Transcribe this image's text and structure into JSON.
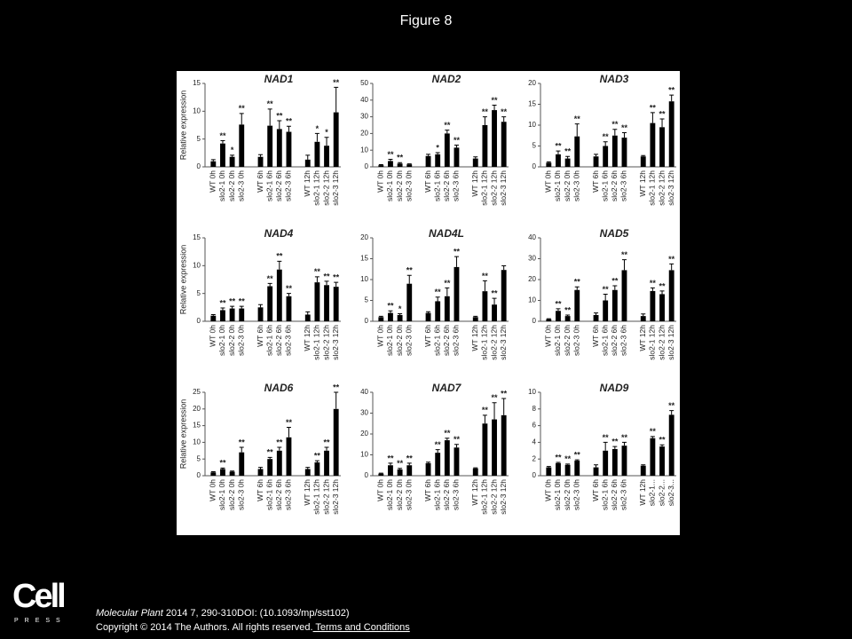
{
  "figure_title": "Figure 8",
  "citation": {
    "journal": "Molecular Plant",
    "rest": " 2014 7, 290-310DOI: (10.1093/mp/sst102)"
  },
  "copyright": "Copyright © 2014 The Authors. All rights reserved.",
  "link": " Terms and Conditions",
  "logo": {
    "name": "Cell",
    "press": "PRESS"
  },
  "chart_data": [
    {
      "type": "bar",
      "title": "NAD1",
      "ylabel": "Relative expression",
      "color": "#000000",
      "categories": [
        "WT 0h",
        "slo2-1 0h",
        "slo2-2 0h",
        "slo2-3 0h",
        "WT 6h",
        "slo2-1 6h",
        "slo2-2 6h",
        "slo2-3 6h",
        "WT 12h",
        "slo2-1 12h",
        "slo2-2 12h",
        "slo2-3 12h"
      ],
      "values": [
        1,
        4.2,
        1.8,
        7.6,
        1.8,
        7.4,
        6.8,
        6.3,
        1.3,
        4.5,
        3.8,
        9.8
      ],
      "errors": [
        0.3,
        0.5,
        0.3,
        2,
        0.4,
        3,
        1.5,
        1,
        0.8,
        1.5,
        1.5,
        4.5
      ],
      "annotations": [
        null,
        "**",
        "*",
        "**",
        null,
        "**",
        "**",
        "**",
        null,
        "*",
        "*",
        "**"
      ],
      "ylim": [
        0,
        15
      ],
      "yticks": [
        0,
        5,
        10,
        15
      ]
    },
    {
      "type": "bar",
      "title": "NAD2",
      "color": "#000000",
      "categories": [
        "WT 0h",
        "slo2-1 0h",
        "slo2-2 0h",
        "slo2-3 0h",
        "WT 6h",
        "slo2-1 6h",
        "slo2-2 6h",
        "slo2-3 6h",
        "WT 12h",
        "slo2-1 12h",
        "slo2-2 12h",
        "slo2-3 12h"
      ],
      "values": [
        1,
        3.5,
        2,
        1.5,
        6.5,
        7.5,
        20,
        11.5,
        5,
        25,
        34,
        27
      ],
      "errors": [
        0.3,
        1,
        0.5,
        0.3,
        1,
        1,
        2,
        1.5,
        1,
        5,
        3,
        3
      ],
      "annotations": [
        null,
        "**",
        "**",
        null,
        null,
        "*",
        "**",
        "**",
        null,
        "**",
        "**",
        "**"
      ],
      "ylim": [
        0,
        50
      ],
      "yticks": [
        0,
        10,
        20,
        30,
        40,
        50
      ]
    },
    {
      "type": "bar",
      "title": "NAD3",
      "color": "#000000",
      "categories": [
        "WT 0h",
        "slo2-1 0h",
        "slo2-2 0h",
        "slo2-3 0h",
        "WT 6h",
        "slo2-1 6h",
        "slo2-2 6h",
        "slo2-3 6h",
        "WT 12h",
        "slo2-1 12h",
        "slo2-2 12h",
        "slo2-3 12h"
      ],
      "values": [
        1,
        3,
        2,
        7.3,
        2.5,
        5,
        7.5,
        7,
        2.5,
        10.5,
        9.5,
        15.7
      ],
      "errors": [
        0.2,
        0.8,
        0.5,
        3,
        0.5,
        1,
        1.5,
        1.2,
        0.2,
        2.5,
        2,
        1.5
      ],
      "annotations": [
        null,
        "**",
        "**",
        "**",
        null,
        "**",
        "**",
        "**",
        null,
        "**",
        "**",
        "**"
      ],
      "ylim": [
        0,
        20
      ],
      "yticks": [
        0,
        5,
        10,
        15,
        20
      ]
    },
    {
      "type": "bar",
      "title": "NAD4",
      "ylabel": "Relative expression",
      "color": "#000000",
      "categories": [
        "WT 0h",
        "slo2-1 0h",
        "slo2-2 0h",
        "slo2-3 0h",
        "WT 6h",
        "slo2-1 6h",
        "slo2-2 6h",
        "slo2-3 6h",
        "WT 12h",
        "slo2-1 12h",
        "slo2-2 12h",
        "slo2-3 12h"
      ],
      "values": [
        1,
        2,
        2.3,
        2.3,
        2.5,
        6.3,
        9.3,
        4.5,
        1.2,
        7,
        6.5,
        6.2
      ],
      "errors": [
        0.2,
        0.4,
        0.4,
        0.4,
        0.5,
        0.5,
        1.5,
        0.5,
        0.5,
        1,
        0.7,
        0.8
      ],
      "annotations": [
        null,
        "**",
        "**",
        "**",
        null,
        "**",
        "**",
        "**",
        null,
        "**",
        "**",
        "**"
      ],
      "ylim": [
        0,
        15
      ],
      "yticks": [
        0,
        5,
        10,
        15
      ]
    },
    {
      "type": "bar",
      "title": "NAD4L",
      "color": "#000000",
      "categories": [
        "WT 0h",
        "slo2-1 0h",
        "slo2-2 0h",
        "slo2-3 0h",
        "WT 6h",
        "slo2-1 6h",
        "slo2-2 6h",
        "slo2-3 6h",
        "WT 12h",
        "slo2-1 12h",
        "slo2-2 12h",
        "slo2-3 12h"
      ],
      "values": [
        1,
        2,
        1.5,
        9,
        2,
        4.8,
        6,
        13,
        1,
        7.2,
        4,
        12.3
      ],
      "errors": [
        0.2,
        0.5,
        0.3,
        2,
        0.3,
        1,
        2,
        2.5,
        0.2,
        2.5,
        1.5,
        1
      ],
      "annotations": [
        null,
        "**",
        "*",
        "**",
        null,
        "**",
        "**",
        "**",
        null,
        "**",
        "**",
        null
      ],
      "ylim": [
        0,
        20
      ],
      "yticks": [
        0,
        5,
        10,
        15,
        20
      ]
    },
    {
      "type": "bar",
      "title": "NAD5",
      "color": "#000000",
      "categories": [
        "WT 0h",
        "slo2-1 0h",
        "slo2-2 0h",
        "slo2-3 0h",
        "WT 6h",
        "slo2-1 6h",
        "slo2-2 6h",
        "slo2-3 6h",
        "WT 12h",
        "slo2-1 12h",
        "slo2-2 12h",
        "slo2-3 12h"
      ],
      "values": [
        1,
        5,
        2.5,
        15,
        3,
        10,
        15,
        24.5,
        2.5,
        14.5,
        13,
        24.5
      ],
      "errors": [
        0.2,
        1,
        0.5,
        1.5,
        1,
        3,
        2,
        5,
        1,
        1.5,
        1.5,
        3
      ],
      "annotations": [
        null,
        "**",
        "**",
        "**",
        null,
        "**",
        "**",
        "**",
        null,
        "**",
        "**",
        "**"
      ],
      "ylim": [
        0,
        40
      ],
      "yticks": [
        0,
        10,
        20,
        30,
        40
      ]
    },
    {
      "type": "bar",
      "title": "NAD6",
      "ylabel": "Relative expression",
      "color": "#000000",
      "categories": [
        "WT 0h",
        "slo2-1 0h",
        "slo2-2 0h",
        "slo2-3 0h",
        "WT 6h",
        "slo2-1 6h",
        "slo2-2 6h",
        "slo2-3 6h",
        "WT 12h",
        "slo2-1 12h",
        "slo2-2 12h",
        "slo2-3 12h"
      ],
      "values": [
        1,
        2,
        1.2,
        7,
        2,
        5,
        7.5,
        11.5,
        2,
        4,
        7.5,
        20
      ],
      "errors": [
        0.2,
        0.3,
        0.2,
        1.5,
        0.5,
        0.5,
        1,
        3,
        0.5,
        0.5,
        1,
        5
      ],
      "annotations": [
        null,
        "**",
        null,
        "**",
        null,
        "**",
        "**",
        "**",
        null,
        "**",
        "**",
        "**"
      ],
      "ylim": [
        0,
        25
      ],
      "yticks": [
        0,
        5,
        10,
        15,
        20,
        25
      ]
    },
    {
      "type": "bar",
      "title": "NAD7",
      "color": "#000000",
      "categories": [
        "WT 0h",
        "slo2-1 0h",
        "slo2-2 0h",
        "slo2-3 0h",
        "WT 6h",
        "slo2-1 6h",
        "slo2-2 6h",
        "slo2-3 6h",
        "WT 12h",
        "slo2-1 12h",
        "slo2-2 12h",
        "slo2-3 12h"
      ],
      "values": [
        1,
        5,
        3,
        5,
        6,
        11,
        17,
        13.5,
        3.5,
        25,
        27,
        29
      ],
      "errors": [
        0.2,
        1,
        0.5,
        1,
        0.5,
        1.5,
        1,
        1.5,
        0.3,
        4,
        8,
        8
      ],
      "annotations": [
        null,
        "**",
        "**",
        "**",
        null,
        "**",
        "**",
        "**",
        null,
        "**",
        "**",
        "**"
      ],
      "ylim": [
        0,
        40
      ],
      "yticks": [
        0,
        10,
        20,
        30,
        40
      ]
    },
    {
      "type": "bar",
      "title": "NAD9",
      "color": "#000000",
      "categories": [
        "WT 0h",
        "slo2-1 0h",
        "slo2-2 0h",
        "slo2-3 0h",
        "WT 6h",
        "slo2-1 6h",
        "slo2-2 6h",
        "slo2-3 6h",
        "WT 12h",
        "slo2-1...",
        "slo2-2...",
        "slo2-3..."
      ],
      "values": [
        1,
        1.5,
        1.3,
        1.8,
        1,
        3,
        3.2,
        3.6,
        1.2,
        4.5,
        3.5,
        7.3
      ],
      "errors": [
        0.1,
        0.1,
        0.1,
        0.1,
        0.3,
        1,
        0.3,
        0.4,
        0.1,
        0.2,
        0.2,
        0.5
      ],
      "annotations": [
        null,
        "**",
        "**",
        "**",
        null,
        "**",
        "**",
        "**",
        null,
        "**",
        "**",
        "**"
      ],
      "ylim": [
        0,
        10
      ],
      "yticks": [
        0,
        2,
        4,
        6,
        8,
        10
      ]
    }
  ]
}
